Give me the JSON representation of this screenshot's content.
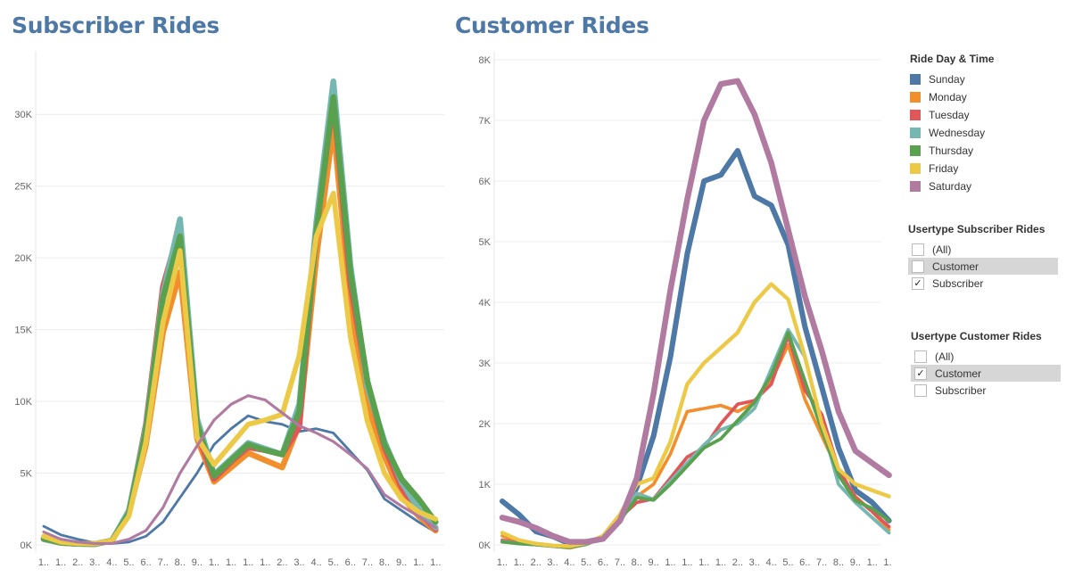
{
  "panels": {
    "legend": {
      "title": "Ride Day & Time",
      "items": [
        {
          "label": "Sunday",
          "color": "#4e79a7"
        },
        {
          "label": "Monday",
          "color": "#f28e2b"
        },
        {
          "label": "Tuesday",
          "color": "#e15759"
        },
        {
          "label": "Wednesday",
          "color": "#76b7b2"
        },
        {
          "label": "Thursday",
          "color": "#59a14f"
        },
        {
          "label": "Friday",
          "color": "#edc948"
        },
        {
          "label": "Saturday",
          "color": "#b07aa1"
        }
      ]
    },
    "subscriber_filter": {
      "title": "Usertype Subscriber Rides",
      "options": [
        {
          "label": "(All)",
          "checked": false,
          "highlighted": false
        },
        {
          "label": "Customer",
          "checked": false,
          "highlighted": true
        },
        {
          "label": "Subscriber",
          "checked": true,
          "highlighted": false
        }
      ]
    },
    "customer_filter": {
      "title": "Usertype Customer Rides",
      "options": [
        {
          "label": "(All)",
          "checked": false,
          "highlighted": false
        },
        {
          "label": "Customer",
          "checked": true,
          "highlighted": true
        },
        {
          "label": "Subscriber",
          "checked": false,
          "highlighted": false
        }
      ]
    }
  },
  "chart_data": [
    {
      "type": "line",
      "title": "Subscriber Rides",
      "xlabel": "",
      "ylabel": "",
      "ylim": [
        0,
        32500
      ],
      "yticks": [
        0,
        5000,
        10000,
        15000,
        20000,
        25000,
        30000
      ],
      "ytick_labels": [
        "0K",
        "5K",
        "10K",
        "15K",
        "20K",
        "25K",
        "30K"
      ],
      "x_tick_labels": [
        "1..",
        "1..",
        "2..",
        "3..",
        "4..",
        "5..",
        "6..",
        "7..",
        "8..",
        "9..",
        "1..",
        "1..",
        "1..",
        "1..",
        "2..",
        "3..",
        "4..",
        "5..",
        "6..",
        "7..",
        "8..",
        "9..",
        "1..",
        "1.."
      ],
      "grid": true,
      "series": [
        {
          "name": "Sunday",
          "color": "#4e79a7",
          "values": [
            1300,
            700,
            400,
            150,
            100,
            200,
            600,
            1600,
            3300,
            5000,
            7000,
            8100,
            9000,
            8600,
            8400,
            7900,
            8100,
            7800,
            6500,
            5200,
            3200,
            2400,
            1600,
            900
          ]
        },
        {
          "name": "Monday",
          "color": "#f28e2b",
          "values": [
            400,
            150,
            80,
            60,
            300,
            2200,
            7000,
            14800,
            19000,
            7400,
            4400,
            5400,
            6400,
            5900,
            5400,
            8400,
            20000,
            29200,
            16800,
            9800,
            6200,
            3400,
            2000,
            1000
          ]
        },
        {
          "name": "Tuesday",
          "color": "#e15759",
          "values": [
            400,
            150,
            80,
            60,
            300,
            2300,
            8400,
            18000,
            22200,
            7800,
            4600,
            5800,
            6800,
            6600,
            6300,
            8200,
            22000,
            31000,
            18200,
            11200,
            6800,
            4000,
            2300,
            1100
          ]
        },
        {
          "name": "Wednesday",
          "color": "#76b7b2",
          "values": [
            400,
            150,
            80,
            60,
            300,
            2400,
            8200,
            17500,
            22700,
            8800,
            4900,
            6000,
            7100,
            6700,
            6300,
            9800,
            22500,
            32300,
            19500,
            11000,
            7200,
            4400,
            2500,
            1200
          ]
        },
        {
          "name": "Thursday",
          "color": "#59a14f",
          "values": [
            450,
            150,
            80,
            60,
            300,
            2200,
            8000,
            17200,
            21500,
            8400,
            4800,
            5900,
            7000,
            6600,
            6300,
            9300,
            21800,
            31200,
            19000,
            11400,
            7000,
            4600,
            3200,
            1600
          ]
        },
        {
          "name": "Friday",
          "color": "#edc948",
          "values": [
            600,
            200,
            100,
            80,
            300,
            2000,
            7200,
            15500,
            20500,
            7500,
            5600,
            7000,
            8400,
            8700,
            9100,
            13200,
            21500,
            24500,
            14500,
            8600,
            5000,
            3200,
            2300,
            1800
          ]
        },
        {
          "name": "Saturday",
          "color": "#b07aa1",
          "values": [
            900,
            400,
            200,
            100,
            100,
            400,
            1000,
            2600,
            5000,
            6900,
            8700,
            9800,
            10400,
            10100,
            9200,
            8300,
            7800,
            7200,
            6300,
            5300,
            3500,
            2700,
            2000,
            1200
          ]
        }
      ]
    },
    {
      "type": "line",
      "title": "Customer Rides",
      "xlabel": "",
      "ylabel": "",
      "ylim": [
        0,
        8000
      ],
      "yticks": [
        0,
        1000,
        2000,
        3000,
        4000,
        5000,
        6000,
        7000,
        8000
      ],
      "ytick_labels": [
        "0K",
        "1K",
        "2K",
        "3K",
        "4K",
        "5K",
        "6K",
        "7K",
        "8K"
      ],
      "x_tick_labels": [
        "1..",
        "1..",
        "2..",
        "3..",
        "4..",
        "5..",
        "6..",
        "7..",
        "8..",
        "9..",
        "1..",
        "1..",
        "1..",
        "1..",
        "2..",
        "3..",
        "4..",
        "5..",
        "6..",
        "7..",
        "8..",
        "9..",
        "1..",
        "1.."
      ],
      "grid": true,
      "series": [
        {
          "name": "Sunday",
          "color": "#4e79a7",
          "values": [
            720,
            500,
            220,
            140,
            20,
            50,
            100,
            400,
            950,
            1800,
            3100,
            4800,
            6000,
            6100,
            6500,
            5750,
            5600,
            4950,
            3600,
            2600,
            1600,
            900,
            700,
            400
          ]
        },
        {
          "name": "Monday",
          "color": "#f28e2b",
          "values": [
            150,
            50,
            10,
            -20,
            -50,
            10,
            120,
            400,
            800,
            1000,
            1500,
            2200,
            2250,
            2300,
            2200,
            2350,
            2700,
            3300,
            2400,
            1800,
            1200,
            800,
            550,
            250
          ]
        },
        {
          "name": "Tuesday",
          "color": "#e15759",
          "values": [
            80,
            30,
            5,
            -20,
            -40,
            20,
            140,
            450,
            700,
            760,
            1100,
            1450,
            1600,
            2000,
            2320,
            2380,
            2650,
            3450,
            2550,
            2150,
            1250,
            780,
            550,
            300
          ]
        },
        {
          "name": "Wednesday",
          "color": "#76b7b2",
          "values": [
            60,
            20,
            5,
            -20,
            -40,
            10,
            120,
            450,
            850,
            750,
            1050,
            1350,
            1650,
            1900,
            2000,
            2250,
            2900,
            3550,
            3100,
            2000,
            1000,
            700,
            450,
            200
          ]
        },
        {
          "name": "Thursday",
          "color": "#59a14f",
          "values": [
            50,
            20,
            5,
            -20,
            -40,
            10,
            130,
            400,
            780,
            740,
            1000,
            1300,
            1600,
            1750,
            2050,
            2350,
            2800,
            3500,
            2700,
            1900,
            1150,
            730,
            600,
            400
          ]
        },
        {
          "name": "Friday",
          "color": "#edc948",
          "values": [
            200,
            80,
            20,
            -10,
            -20,
            30,
            150,
            500,
            1000,
            1100,
            1700,
            2650,
            3000,
            3250,
            3500,
            4000,
            4300,
            4050,
            3100,
            2000,
            1250,
            1000,
            900,
            800
          ]
        },
        {
          "name": "Saturday",
          "color": "#b07aa1",
          "values": [
            450,
            380,
            280,
            150,
            50,
            50,
            100,
            400,
            1100,
            2500,
            4200,
            5700,
            7000,
            7600,
            7650,
            7100,
            6300,
            5200,
            4100,
            3200,
            2200,
            1550,
            1350,
            1150
          ]
        }
      ]
    }
  ]
}
